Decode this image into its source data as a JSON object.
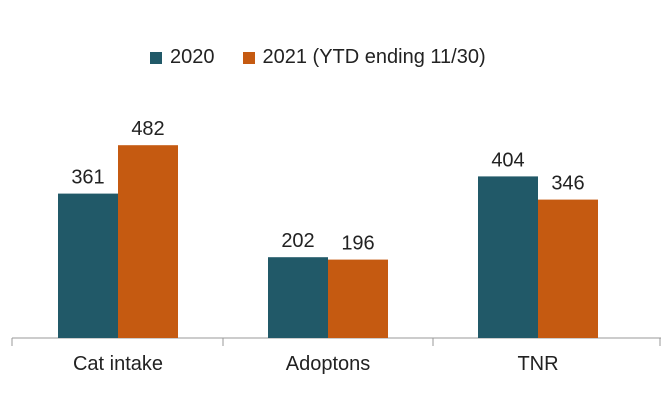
{
  "chart_data": {
    "type": "bar",
    "categories": [
      "Cat intake",
      "Adoptons",
      "TNR"
    ],
    "series": [
      {
        "name": "2020",
        "values": [
          361,
          202,
          404
        ],
        "color": "#215968"
      },
      {
        "name": "2021 (YTD ending 11/30)",
        "values": [
          482,
          196,
          346
        ],
        "color": "#C55A11"
      }
    ],
    "title": "",
    "xlabel": "",
    "ylabel": "",
    "ylim": [
      0,
      600
    ],
    "grid": false,
    "legend_position": "top"
  }
}
